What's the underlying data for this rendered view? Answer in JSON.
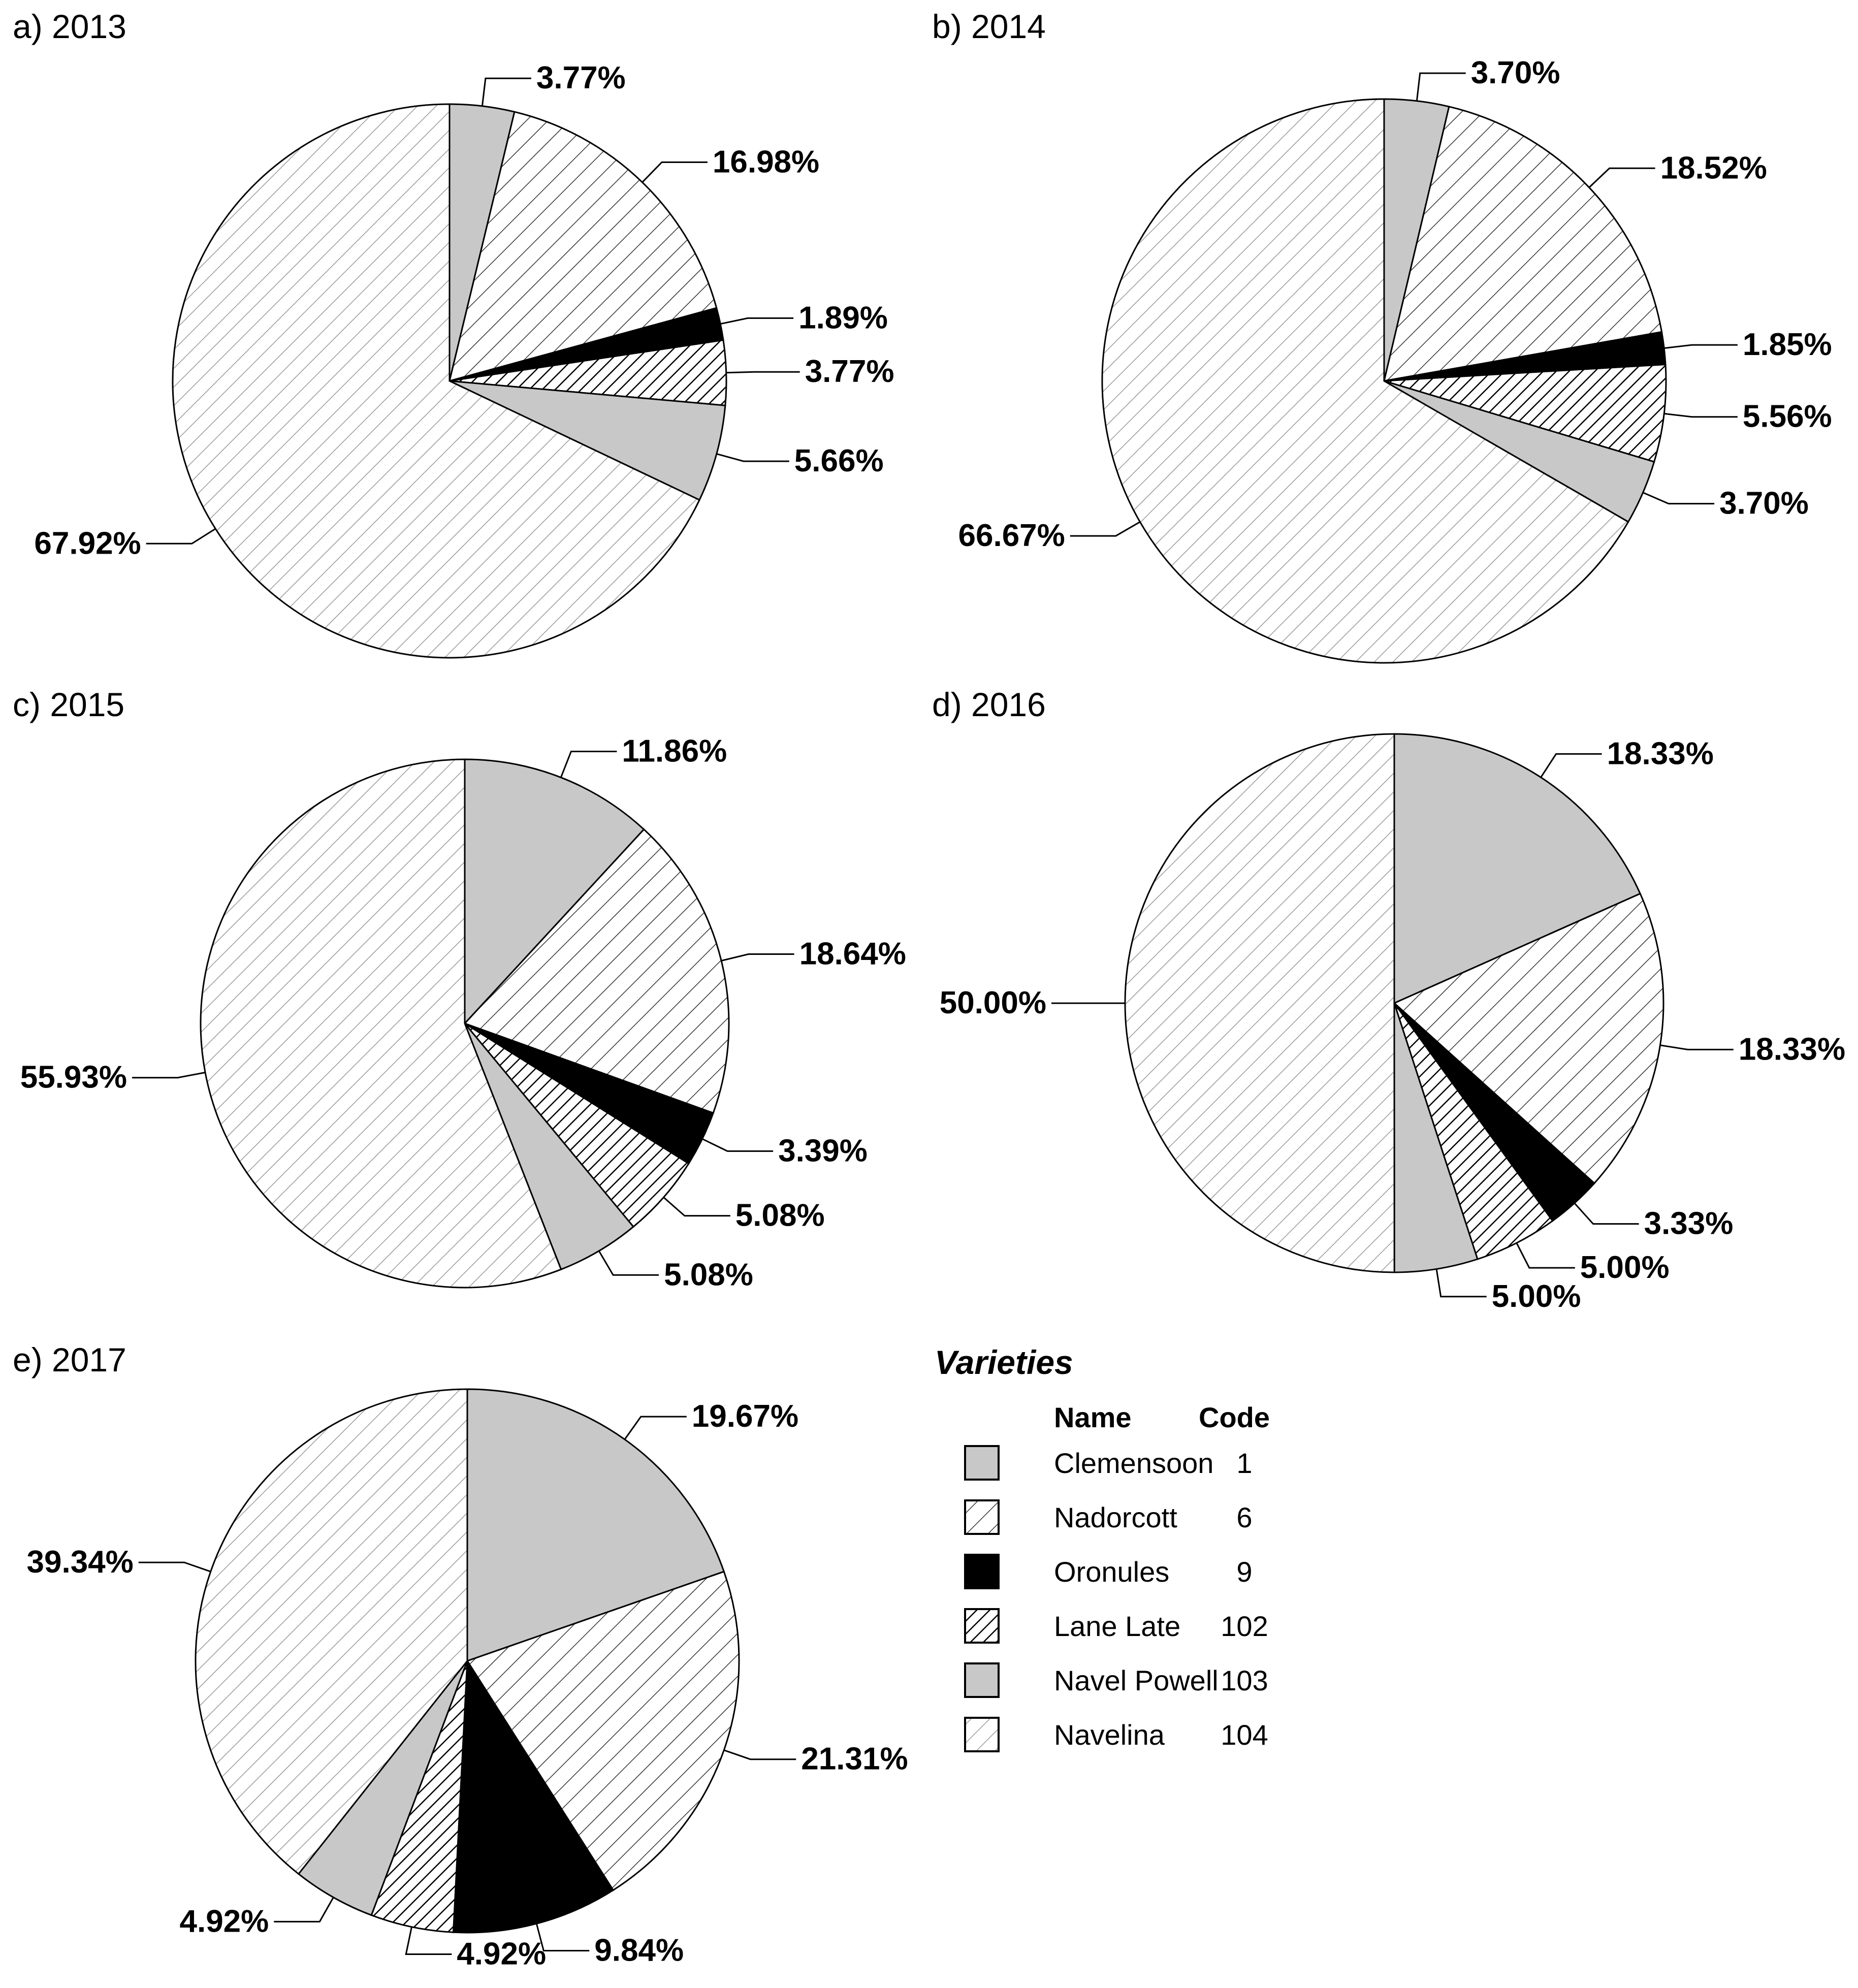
{
  "chart_data": [
    {
      "type": "pie",
      "title": "a) 2013",
      "slices": [
        {
          "code": 1,
          "name": "Clemensoon",
          "value": 3.77,
          "label": "3.77%"
        },
        {
          "code": 6,
          "name": "Nadorcott",
          "value": 16.98,
          "label": "16.98%"
        },
        {
          "code": 9,
          "name": "Oronules",
          "value": 1.89,
          "label": "1.89%"
        },
        {
          "code": 102,
          "name": "Lane Late",
          "value": 3.77,
          "label": "3.77%"
        },
        {
          "code": 103,
          "name": "Navel Powell",
          "value": 5.66,
          "label": "5.66%"
        },
        {
          "code": 104,
          "name": "Navelina",
          "value": 67.92,
          "label": "67.92%"
        }
      ]
    },
    {
      "type": "pie",
      "title": "b) 2014",
      "slices": [
        {
          "code": 1,
          "name": "Clemensoon",
          "value": 3.7,
          "label": "3.70%"
        },
        {
          "code": 6,
          "name": "Nadorcott",
          "value": 18.52,
          "label": "18.52%"
        },
        {
          "code": 9,
          "name": "Oronules",
          "value": 1.85,
          "label": "1.85%"
        },
        {
          "code": 102,
          "name": "Lane Late",
          "value": 5.56,
          "label": "5.56%"
        },
        {
          "code": 103,
          "name": "Navel Powell",
          "value": 3.7,
          "label": "3.70%"
        },
        {
          "code": 104,
          "name": "Navelina",
          "value": 66.67,
          "label": "66.67%"
        }
      ]
    },
    {
      "type": "pie",
      "title": "c) 2015",
      "slices": [
        {
          "code": 1,
          "name": "Clemensoon",
          "value": 11.86,
          "label": "11.86%"
        },
        {
          "code": 6,
          "name": "Nadorcott",
          "value": 18.64,
          "label": "18.64%"
        },
        {
          "code": 9,
          "name": "Oronules",
          "value": 3.39,
          "label": "3.39%"
        },
        {
          "code": 102,
          "name": "Lane Late",
          "value": 5.08,
          "label": "5.08%"
        },
        {
          "code": 103,
          "name": "Navel Powell",
          "value": 5.08,
          "label": "5.08%"
        },
        {
          "code": 104,
          "name": "Navelina",
          "value": 55.93,
          "label": "55.93%"
        }
      ]
    },
    {
      "type": "pie",
      "title": "d) 2016",
      "slices": [
        {
          "code": 1,
          "name": "Clemensoon",
          "value": 18.33,
          "label": "18.33%"
        },
        {
          "code": 6,
          "name": "Nadorcott",
          "value": 18.33,
          "label": "18.33%"
        },
        {
          "code": 9,
          "name": "Oronules",
          "value": 3.33,
          "label": "3.33%"
        },
        {
          "code": 102,
          "name": "Lane Late",
          "value": 5.0,
          "label": "5.00%"
        },
        {
          "code": 103,
          "name": "Navel Powell",
          "value": 5.0,
          "label": "5.00%"
        },
        {
          "code": 104,
          "name": "Navelina",
          "value": 50.0,
          "label": "50.00%"
        }
      ]
    },
    {
      "type": "pie",
      "title": "e) 2017",
      "slices": [
        {
          "code": 1,
          "name": "Clemensoon",
          "value": 19.67,
          "label": "19.67%"
        },
        {
          "code": 6,
          "name": "Nadorcott",
          "value": 21.31,
          "label": "21.31%"
        },
        {
          "code": 9,
          "name": "Oronules",
          "value": 9.84,
          "label": "9.84%"
        },
        {
          "code": 102,
          "name": "Lane Late",
          "value": 4.92,
          "label": "4.92%"
        },
        {
          "code": 103,
          "name": "Navel Powell",
          "value": 4.92,
          "label": "4.92%"
        },
        {
          "code": 104,
          "name": "Navelina",
          "value": 39.34,
          "label": "39.34%"
        }
      ]
    }
  ],
  "legend": {
    "title": "Varieties",
    "name_header": "Name",
    "code_header": "Code",
    "items": [
      {
        "name": "Clemensoon",
        "code": "1",
        "pattern": "solid-gray"
      },
      {
        "name": "Nadorcott",
        "code": "6",
        "pattern": "diagonal-light"
      },
      {
        "name": "Oronules",
        "code": "9",
        "pattern": "solid-black"
      },
      {
        "name": "Lane Late",
        "code": "102",
        "pattern": "diagonal-dense"
      },
      {
        "name": "Navel Powell",
        "code": "103",
        "pattern": "solid-gray"
      },
      {
        "name": "Navelina",
        "code": "104",
        "pattern": "diagonal-faint"
      }
    ]
  },
  "colors": {
    "gray_fill": "#c8c8c8",
    "black_fill": "#000000",
    "white_fill": "#ffffff",
    "hatch_stroke": "#000000",
    "faint_hatch_stroke": "#9a9a9a"
  }
}
